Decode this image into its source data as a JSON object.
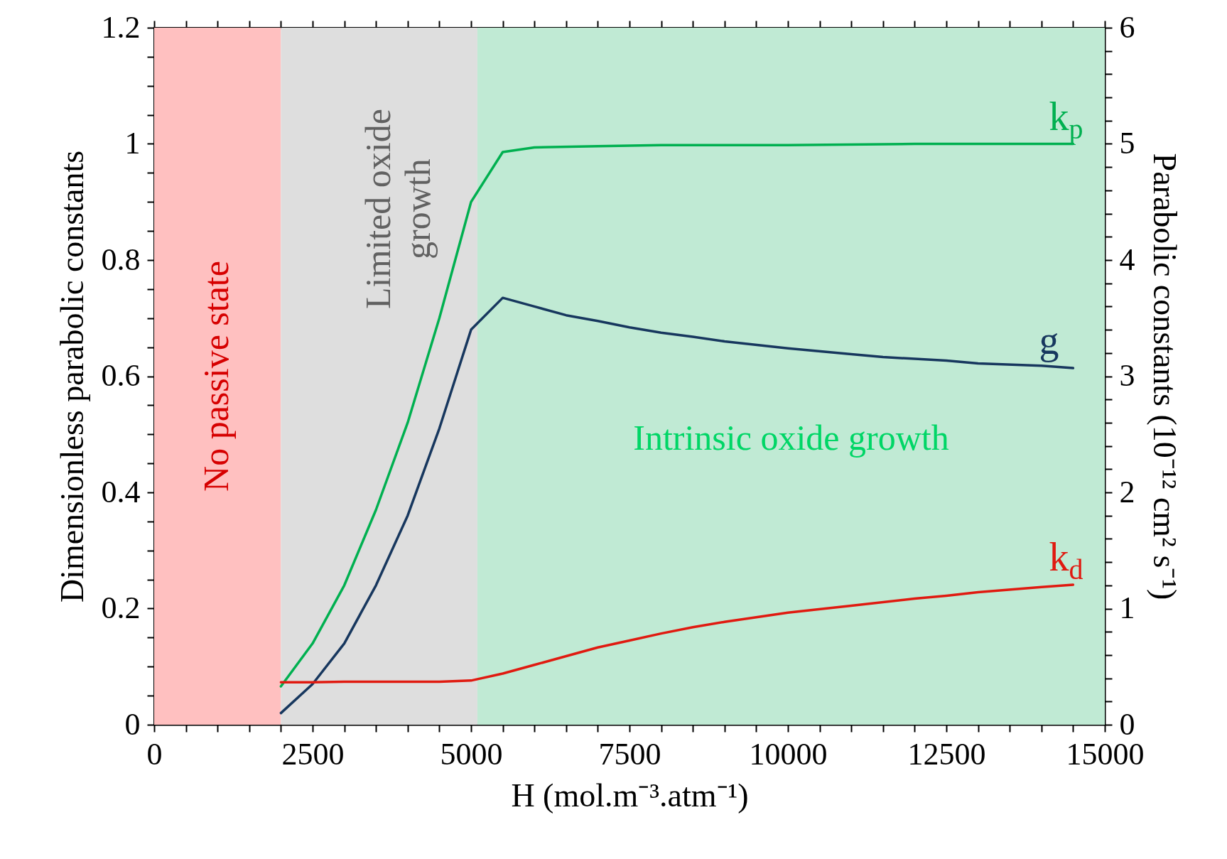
{
  "chart_data": {
    "type": "line",
    "xlabel": "H (mol.m⁻³.atm⁻¹)",
    "ylabel": "Dimensionless parabolic constants",
    "y2label": "Parabolic constants (10⁻¹² cm² s⁻¹)",
    "xlim": [
      0,
      15000
    ],
    "xticks": [
      0,
      {
        "value": 500,
        "label": null
      },
      {
        "value": 1000,
        "label": null
      },
      {
        "value": 1500,
        "label": null
      },
      {
        "value": 2000,
        "label": null
      },
      2500,
      {
        "value": 3000,
        "label": null
      },
      {
        "value": 3500,
        "label": null
      },
      {
        "value": 4000,
        "label": null
      },
      {
        "value": 4500,
        "label": null
      },
      5000,
      {
        "value": 5500,
        "label": null
      },
      {
        "value": 6000,
        "label": null
      },
      {
        "value": 6500,
        "label": null
      },
      {
        "value": 7000,
        "label": null
      },
      7500,
      {
        "value": 8000,
        "label": null
      },
      {
        "value": 8500,
        "label": null
      },
      {
        "value": 9000,
        "label": null
      },
      {
        "value": 9500,
        "label": null
      },
      10000,
      {
        "value": 10500,
        "label": null
      },
      {
        "value": 11000,
        "label": null
      },
      {
        "value": 11500,
        "label": null
      },
      {
        "value": 12000,
        "label": null
      },
      12500,
      {
        "value": 13000,
        "label": null
      },
      {
        "value": 13500,
        "label": null
      },
      {
        "value": 14000,
        "label": null
      },
      {
        "value": 14500,
        "label": null
      },
      15000
    ],
    "ylim": [
      0,
      1.2
    ],
    "yticks": [
      0,
      {
        "value": 0.05,
        "label": null
      },
      {
        "value": 0.1,
        "label": null
      },
      {
        "value": 0.15,
        "label": null
      },
      0.2,
      {
        "value": 0.25,
        "label": null
      },
      {
        "value": 0.3,
        "label": null
      },
      {
        "value": 0.35,
        "label": null
      },
      0.4,
      {
        "value": 0.45,
        "label": null
      },
      {
        "value": 0.5,
        "label": null
      },
      {
        "value": 0.55,
        "label": null
      },
      0.6,
      {
        "value": 0.65,
        "label": null
      },
      {
        "value": 0.7,
        "label": null
      },
      {
        "value": 0.75,
        "label": null
      },
      0.8,
      {
        "value": 0.85,
        "label": null
      },
      {
        "value": 0.9,
        "label": null
      },
      {
        "value": 0.95,
        "label": null
      },
      1,
      {
        "value": 1.05,
        "label": null
      },
      {
        "value": 1.1,
        "label": null
      },
      {
        "value": 1.15,
        "label": null
      },
      1.2
    ],
    "y2lim": [
      0,
      6
    ],
    "y2ticks": [
      0,
      {
        "value": 0.2,
        "label": null
      },
      {
        "value": 0.4,
        "label": null
      },
      {
        "value": 0.6,
        "label": null
      },
      {
        "value": 0.8,
        "label": null
      },
      1,
      {
        "value": 1.2,
        "label": null
      },
      {
        "value": 1.4,
        "label": null
      },
      {
        "value": 1.6,
        "label": null
      },
      {
        "value": 1.8,
        "label": null
      },
      2,
      {
        "value": 2.2,
        "label": null
      },
      {
        "value": 2.4,
        "label": null
      },
      {
        "value": 2.6,
        "label": null
      },
      {
        "value": 2.8,
        "label": null
      },
      3,
      {
        "value": 3.2,
        "label": null
      },
      {
        "value": 3.4,
        "label": null
      },
      {
        "value": 3.6,
        "label": null
      },
      {
        "value": 3.8,
        "label": null
      },
      4,
      {
        "value": 4.2,
        "label": null
      },
      {
        "value": 4.4,
        "label": null
      },
      {
        "value": 4.6,
        "label": null
      },
      {
        "value": 4.8,
        "label": null
      },
      5,
      {
        "value": 5.2,
        "label": null
      },
      {
        "value": 5.4,
        "label": null
      },
      {
        "value": 5.6,
        "label": null
      },
      {
        "value": 5.8,
        "label": null
      },
      6
    ],
    "bands": [
      {
        "axis": "x",
        "from": 0,
        "to": 2000,
        "label": "No passive state",
        "color": "#ffc0c0"
      },
      {
        "axis": "x",
        "from": 2000,
        "to": 5100,
        "label": "Limited oxide growth",
        "color": "#dedede"
      },
      {
        "axis": "x",
        "from": 5100,
        "to": 15000,
        "label": "Intrinsic oxide growth",
        "color": "#c0ead4"
      }
    ],
    "series": [
      {
        "name": "k$_{p}$",
        "color": "#00b050",
        "axis": "y2",
        "x": [
          2000,
          2500,
          3000,
          3500,
          4000,
          4500,
          5000,
          5500,
          6000,
          7000,
          8000,
          10000,
          12000,
          14500
        ],
        "values": [
          0.33,
          0.7,
          1.2,
          1.85,
          2.6,
          3.5,
          4.5,
          4.93,
          4.97,
          4.98,
          4.99,
          4.99,
          5.0,
          5.0
        ]
      },
      {
        "name": "g",
        "color": "#17375e",
        "x": [
          2000,
          2500,
          3000,
          3500,
          4000,
          4500,
          5000,
          5500,
          6000,
          6500,
          7000,
          7500,
          8000,
          8500,
          9000,
          10000,
          11000,
          11500,
          12500,
          13000,
          14000,
          14500
        ],
        "values": [
          0.02,
          0.07,
          0.14,
          0.24,
          0.36,
          0.51,
          0.68,
          0.735,
          0.72,
          0.705,
          0.695,
          0.684,
          0.675,
          0.668,
          0.66,
          0.648,
          0.638,
          0.633,
          0.627,
          0.622,
          0.618,
          0.614
        ]
      },
      {
        "name": "k$_{d}$",
        "color": "#e01a10",
        "axis": "y2",
        "x": [
          2000,
          2500,
          3000,
          3500,
          4000,
          4500,
          5000,
          5500,
          6000,
          6500,
          7000,
          7500,
          8000,
          8500,
          9000,
          10000,
          11000,
          12000,
          12500,
          13000,
          14000,
          14500
        ],
        "values": [
          0.365,
          0.365,
          0.37,
          0.37,
          0.37,
          0.37,
          0.38,
          0.44,
          0.515,
          0.59,
          0.665,
          0.725,
          0.785,
          0.84,
          0.885,
          0.965,
          1.025,
          1.085,
          1.11,
          1.14,
          1.185,
          1.205
        ]
      }
    ]
  }
}
